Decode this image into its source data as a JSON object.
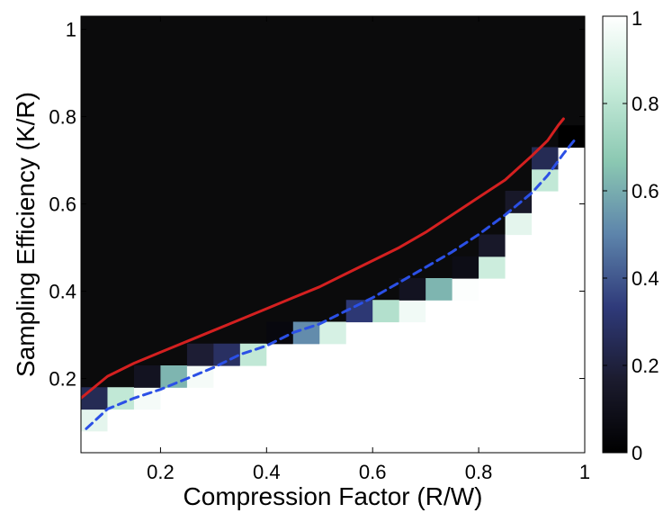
{
  "chart_data": {
    "type": "heatmap",
    "title": "",
    "xlabel": "Compression Factor (R/W)",
    "ylabel": "Sampling Efficiency (K/R)",
    "xlim": [
      0.05,
      1.0
    ],
    "ylim": [
      0.03,
      1.03
    ],
    "x_ticks": [
      0.2,
      0.4,
      0.6,
      0.8,
      1.0
    ],
    "x_tick_labels": [
      "0.2",
      "0.4",
      "0.6",
      "0.8",
      "1"
    ],
    "y_ticks": [
      0.2,
      0.4,
      0.6,
      0.8,
      1.0
    ],
    "y_tick_labels": [
      "0.2",
      "0.4",
      "0.6",
      "0.8",
      "1"
    ],
    "colorbar": {
      "range": [
        0,
        1
      ],
      "ticks": [
        0,
        0.2,
        0.4,
        0.6,
        0.8,
        1.0
      ],
      "tick_labels": [
        "0",
        "0.2",
        "0.4",
        "0.6",
        "0.8",
        "1"
      ],
      "colormap": [
        "#000000",
        "#1b1b2e",
        "#2f3a7a",
        "#5d84ab",
        "#8bc8b2",
        "#c6ebd9",
        "#ffffff"
      ]
    },
    "grid": {
      "x_centers": [
        0.075,
        0.125,
        0.175,
        0.225,
        0.275,
        0.325,
        0.375,
        0.425,
        0.475,
        0.525,
        0.575,
        0.625,
        0.675,
        0.725,
        0.775,
        0.825,
        0.875,
        0.925,
        0.975
      ],
      "cell_width": 0.05,
      "y_bottom": 0.03,
      "cell_height": 0.05,
      "boundary_cells": [
        [
          {
            "y": 0.105,
            "v": 0.92
          },
          {
            "y": 0.155,
            "v": 0.25
          }
        ],
        [
          {
            "y": 0.155,
            "v": 0.82
          }
        ],
        [
          {
            "y": 0.155,
            "v": 0.97
          },
          {
            "y": 0.205,
            "v": 0.12
          }
        ],
        [
          {
            "y": 0.205,
            "v": 0.62
          }
        ],
        [
          {
            "y": 0.205,
            "v": 0.97
          },
          {
            "y": 0.255,
            "v": 0.18
          }
        ],
        [
          {
            "y": 0.255,
            "v": 0.28
          }
        ],
        [
          {
            "y": 0.255,
            "v": 0.82
          }
        ],
        [
          {
            "y": 0.305,
            "v": 0.05
          }
        ],
        [
          {
            "y": 0.305,
            "v": 0.52
          }
        ],
        [
          {
            "y": 0.305,
            "v": 0.88
          }
        ],
        [
          {
            "y": 0.355,
            "v": 0.32
          }
        ],
        [
          {
            "y": 0.355,
            "v": 0.78
          }
        ],
        [
          {
            "y": 0.355,
            "v": 0.96
          },
          {
            "y": 0.405,
            "v": 0.12
          }
        ],
        [
          {
            "y": 0.405,
            "v": 0.62
          }
        ],
        [
          {
            "y": 0.405,
            "v": 0.99
          },
          {
            "y": 0.455,
            "v": 0.08
          }
        ],
        [
          {
            "y": 0.455,
            "v": 0.85
          },
          {
            "y": 0.505,
            "v": 0.15
          }
        ],
        [
          {
            "y": 0.555,
            "v": 0.92
          },
          {
            "y": 0.605,
            "v": 0.15
          }
        ],
        [
          {
            "y": 0.655,
            "v": 0.82
          },
          {
            "y": 0.705,
            "v": 0.25
          }
        ],
        [
          {
            "y": 0.755,
            "v": 0.0
          }
        ]
      ]
    },
    "series": [
      {
        "style": "solid",
        "color": "#d42020",
        "x": [
          0.05,
          0.1,
          0.15,
          0.2,
          0.25,
          0.3,
          0.35,
          0.4,
          0.45,
          0.5,
          0.55,
          0.6,
          0.65,
          0.7,
          0.75,
          0.8,
          0.85,
          0.9,
          0.93,
          0.95,
          0.96
        ],
        "y": [
          0.155,
          0.205,
          0.235,
          0.26,
          0.285,
          0.31,
          0.335,
          0.36,
          0.385,
          0.41,
          0.44,
          0.47,
          0.5,
          0.535,
          0.575,
          0.615,
          0.655,
          0.71,
          0.745,
          0.78,
          0.795
        ]
      },
      {
        "style": "dashed",
        "color": "#2b50e6",
        "x": [
          0.06,
          0.1,
          0.15,
          0.2,
          0.25,
          0.3,
          0.35,
          0.4,
          0.45,
          0.5,
          0.55,
          0.6,
          0.65,
          0.7,
          0.75,
          0.8,
          0.85,
          0.9,
          0.93,
          0.96,
          0.98
        ],
        "y": [
          0.085,
          0.13,
          0.155,
          0.175,
          0.2,
          0.225,
          0.255,
          0.275,
          0.305,
          0.325,
          0.355,
          0.385,
          0.42,
          0.455,
          0.49,
          0.53,
          0.575,
          0.625,
          0.665,
          0.715,
          0.745
        ]
      }
    ]
  }
}
